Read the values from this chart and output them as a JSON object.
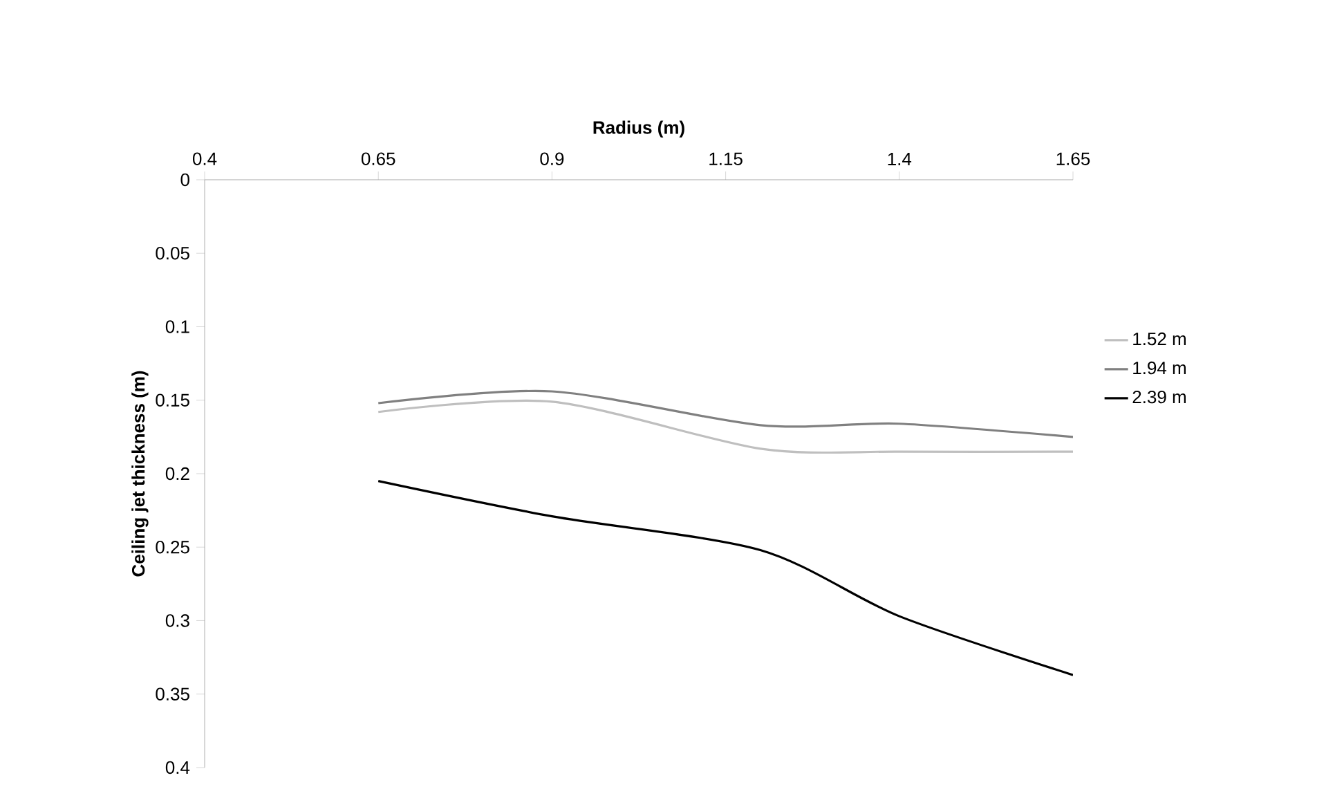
{
  "chart_data": {
    "type": "line",
    "xlabel": "Radius (m)",
    "ylabel": "Ceiling jet thickness (m)",
    "x": [
      0.65,
      0.9,
      1.2,
      1.4,
      1.65
    ],
    "xlim": [
      0.4,
      1.65
    ],
    "xticks": [
      0.4,
      0.65,
      0.9,
      1.15,
      1.4,
      1.65
    ],
    "ylim": [
      0.4,
      0
    ],
    "yticks": [
      0,
      0.05,
      0.1,
      0.15,
      0.2,
      0.25,
      0.3,
      0.35,
      0.4
    ],
    "grid": false,
    "legend": "right",
    "marker": "none",
    "line_style": "solid",
    "series": [
      {
        "name": "1.52 m",
        "color": "#bfbfbf",
        "values": [
          0.158,
          0.151,
          0.183,
          0.185,
          0.185
        ]
      },
      {
        "name": "1.94 m",
        "color": "#808080",
        "values": [
          0.152,
          0.144,
          0.167,
          0.166,
          0.175
        ]
      },
      {
        "name": "2.39 m",
        "color": "#000000",
        "values": [
          0.205,
          0.229,
          0.252,
          0.297,
          0.337
        ]
      }
    ]
  }
}
